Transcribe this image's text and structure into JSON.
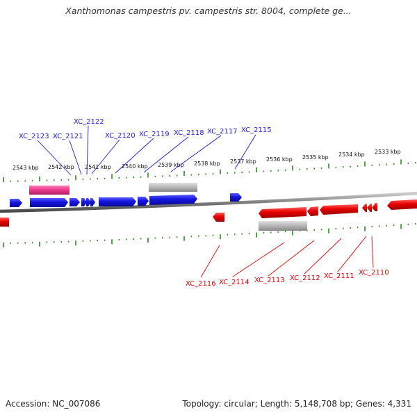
{
  "title": "Xanthomonas campestris pv. campestris str. 8004, complete ge...",
  "accession_text": "Accession: NC_007086",
  "topology_text": "Topology: circular; Length: 5,148,708 bp; Genes: 4,331",
  "colors": {
    "forward_gene": "#1a1ae6",
    "reverse_gene": "#e60000",
    "backbone": "#7f7f7f",
    "ticks": "#2a8a1f",
    "pink_feature": "#e8378a",
    "gray_feature": "#b5b5b5"
  },
  "scale_labels": [
    "2543 kbp",
    "2542 kbp",
    "2541 kbp",
    "2540 kbp",
    "2539 kbp",
    "2538 kbp",
    "2537 kbp",
    "2536 kbp",
    "2535 kbp",
    "2534 kbp",
    "2533 kbp"
  ],
  "forward_gene_labels": [
    "XC_2123",
    "XC_2121",
    "XC_2122",
    "XC_2120",
    "XC_2119",
    "XC_2118",
    "XC_2117",
    "XC_2115"
  ],
  "reverse_gene_labels": [
    "XC_2116",
    "XC_2114",
    "XC_2113",
    "XC_2112",
    "XC_2111",
    "XC_2110"
  ]
}
